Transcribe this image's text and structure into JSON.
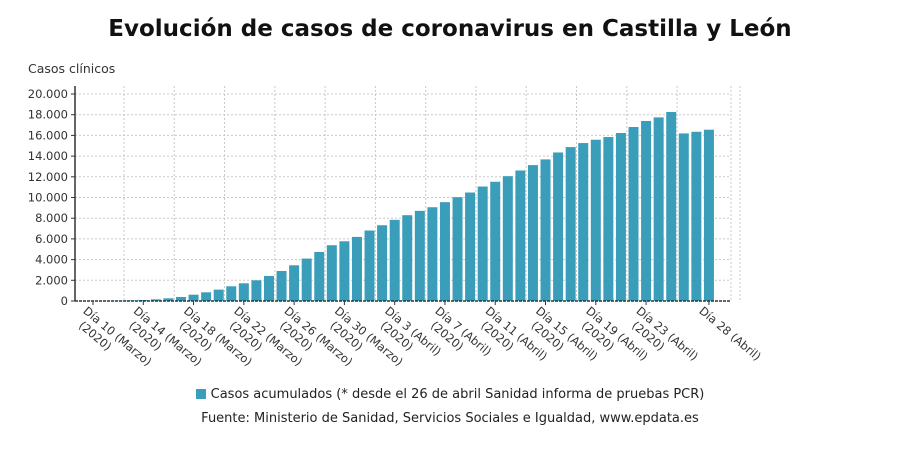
{
  "chart_data": {
    "type": "bar",
    "title": "Evolución de casos de coronavirus en Castilla y León",
    "ylabel": "Casos clínicos",
    "xlabel": "",
    "ylim": [
      0,
      20000
    ],
    "yticks": [
      "0",
      "2.000",
      "4.000",
      "6.000",
      "8.000",
      "10.000",
      "12.000",
      "14.000",
      "16.000",
      "18.000",
      "20.000"
    ],
    "grid": true,
    "legend_placement": "bottom",
    "color": "#3a9dba",
    "categories": [
      "10 Mar",
      "11 Mar",
      "12 Mar",
      "13 Mar",
      "14 Mar",
      "15 Mar",
      "16 Mar",
      "17 Mar",
      "18 Mar",
      "19 Mar",
      "20 Mar",
      "21 Mar",
      "22 Mar",
      "23 Mar",
      "24 Mar",
      "25 Mar",
      "26 Mar",
      "27 Mar",
      "28 Mar",
      "29 Mar",
      "30 Mar",
      "31 Mar",
      "1 Abr",
      "2 Abr",
      "3 Abr",
      "4 Abr",
      "5 Abr",
      "6 Abr",
      "7 Abr",
      "8 Abr",
      "9 Abr",
      "10 Abr",
      "11 Abr",
      "12 Abr",
      "13 Abr",
      "14 Abr",
      "15 Abr",
      "16 Abr",
      "17 Abr",
      "18 Abr",
      "19 Abr",
      "20 Abr",
      "21 Abr",
      "22 Abr",
      "23 Abr",
      "24 Abr",
      "25 Abr",
      "26 Abr",
      "27 Abr",
      "28 Abr"
    ],
    "tick_labels": [
      {
        "index": 0,
        "lines": [
          "Día 10 (Marzo)",
          "(2020)"
        ]
      },
      {
        "index": 4,
        "lines": [
          "Día 14 (Marzo)",
          "(2020)"
        ]
      },
      {
        "index": 8,
        "lines": [
          "Día 18 (Marzo)",
          "(2020)"
        ]
      },
      {
        "index": 12,
        "lines": [
          "Día 22 (Marzo)",
          "(2020)"
        ]
      },
      {
        "index": 16,
        "lines": [
          "Día 26 (Marzo)",
          "(2020)"
        ]
      },
      {
        "index": 20,
        "lines": [
          "Día 30 (Marzo)",
          "(2020)"
        ]
      },
      {
        "index": 24,
        "lines": [
          "Día 3 (Abril)",
          "(2020)"
        ]
      },
      {
        "index": 28,
        "lines": [
          "Día 7 (Abril)",
          "(2020)"
        ]
      },
      {
        "index": 32,
        "lines": [
          "Día 11 (Abril)",
          "(2020)"
        ]
      },
      {
        "index": 36,
        "lines": [
          "Día 15 (Abril)",
          "(2020)"
        ]
      },
      {
        "index": 40,
        "lines": [
          "Día 19 (Abril)",
          "(2020)"
        ]
      },
      {
        "index": 44,
        "lines": [
          "Día 23 (Abril)",
          "(2020)"
        ]
      },
      {
        "index": 49,
        "lines": [
          "Día 28 (Abril)"
        ]
      }
    ],
    "series": [
      {
        "name": "Casos acumulados (* desde el 26 de abril Sanidad informa de pruebas PCR)",
        "values": [
          11,
          19,
          33,
          59,
          100,
          160,
          260,
          390,
          610,
          840,
          1100,
          1420,
          1710,
          2000,
          2420,
          2900,
          3450,
          4100,
          4740,
          5390,
          5770,
          6190,
          6810,
          7320,
          7840,
          8290,
          8710,
          9060,
          9550,
          10030,
          10480,
          11060,
          11520,
          12060,
          12610,
          13130,
          13680,
          14350,
          14870,
          15260,
          15580,
          15840,
          16230,
          16810,
          17390,
          17740,
          18260,
          16190,
          16350,
          16550
        ]
      }
    ]
  },
  "source": "Fuente: Ministerio de Sanidad, Servicios Sociales e Igualdad, www.epdata.es"
}
